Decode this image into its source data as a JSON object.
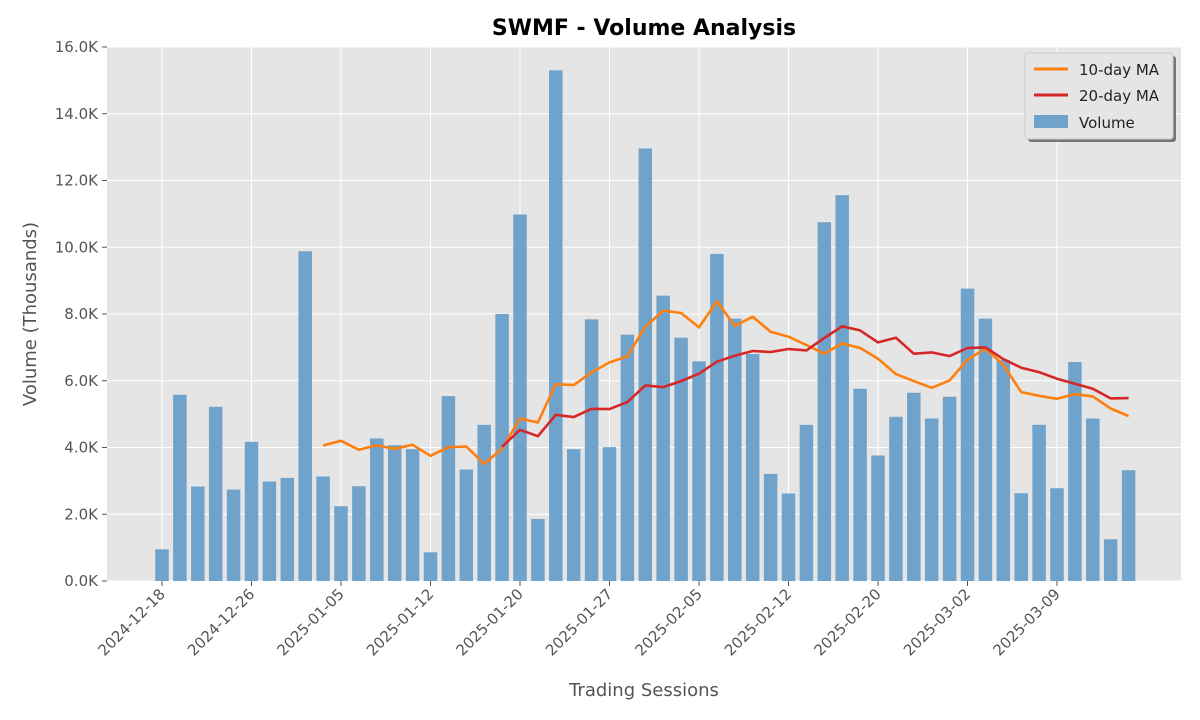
{
  "chart_data": {
    "type": "bar",
    "title": "SWMF - Volume Analysis",
    "xlabel": "Trading Sessions",
    "ylabel": "Volume (Thousands)",
    "ylim": [
      0,
      16000
    ],
    "y_ticks": [
      0,
      2000,
      4000,
      6000,
      8000,
      10000,
      12000,
      14000,
      16000
    ],
    "y_tick_labels": [
      "0.0K",
      "2.0K",
      "4.0K",
      "6.0K",
      "8.0K",
      "10.0K",
      "12.0K",
      "14.0K",
      "16.0K"
    ],
    "x_tick_labels": [
      "2024-12-18",
      "2024-12-26",
      "2025-01-05",
      "2025-01-12",
      "2025-01-20",
      "2025-01-27",
      "2025-02-05",
      "2025-02-12",
      "2025-02-20",
      "2025-03-02",
      "2025-03-09"
    ],
    "x_tick_bar_index": [
      0,
      5,
      10,
      15,
      20,
      25,
      30,
      35,
      40,
      45,
      50
    ],
    "grid": true,
    "legend_position": "top-right",
    "legend": [
      "10-day MA",
      "20-day MA",
      "Volume"
    ],
    "colors": {
      "volume": "#6fa3cb",
      "ma10": "#ff7f0e",
      "ma20": "#d62728",
      "plot_bg": "#e5e5e5"
    },
    "series": [
      {
        "name": "Volume",
        "type": "bar",
        "values": [
          950,
          5580,
          2830,
          5220,
          2740,
          4170,
          2980,
          3090,
          9880,
          3130,
          2240,
          2840,
          4270,
          4070,
          3950,
          860,
          5540,
          3340,
          4680,
          8000,
          10980,
          1860,
          15300,
          3950,
          7840,
          4010,
          7380,
          12960,
          8550,
          7290,
          6580,
          9800,
          7860,
          6800,
          3210,
          2620,
          4680,
          10750,
          11560,
          5760,
          3760,
          4920,
          5640,
          4870,
          5520,
          8760,
          7860,
          6620,
          2630,
          4680,
          2780,
          6560,
          4870,
          1250,
          3320
        ]
      },
      {
        "name": "10-day MA",
        "type": "line",
        "values": [
          null,
          null,
          null,
          null,
          null,
          null,
          null,
          null,
          null,
          4060,
          4200,
          3930,
          4070,
          3960,
          4080,
          3750,
          4010,
          4030,
          3510,
          3960,
          4870,
          4750,
          5900,
          5870,
          6250,
          6550,
          6730,
          7620,
          8100,
          8030,
          7600,
          8380,
          7640,
          7920,
          7470,
          7320,
          7070,
          6810,
          7120,
          6980,
          6660,
          6200,
          5990,
          5790,
          6010,
          6630,
          6960,
          6480,
          5660,
          5550,
          5460,
          5600,
          5530,
          5170,
          4940
        ]
      },
      {
        "name": "20-day MA",
        "type": "line",
        "values": [
          null,
          null,
          null,
          null,
          null,
          null,
          null,
          null,
          null,
          null,
          null,
          null,
          null,
          null,
          null,
          null,
          null,
          null,
          null,
          4020,
          4530,
          4340,
          4980,
          4910,
          5160,
          5150,
          5360,
          5860,
          5810,
          5990,
          6210,
          6570,
          6750,
          6890,
          6860,
          6950,
          6910,
          7280,
          7630,
          7510,
          7150,
          7290,
          6810,
          6850,
          6740,
          6980,
          7000,
          6650,
          6390,
          6260,
          6060,
          5910,
          5760,
          5470,
          5480
        ]
      }
    ]
  }
}
